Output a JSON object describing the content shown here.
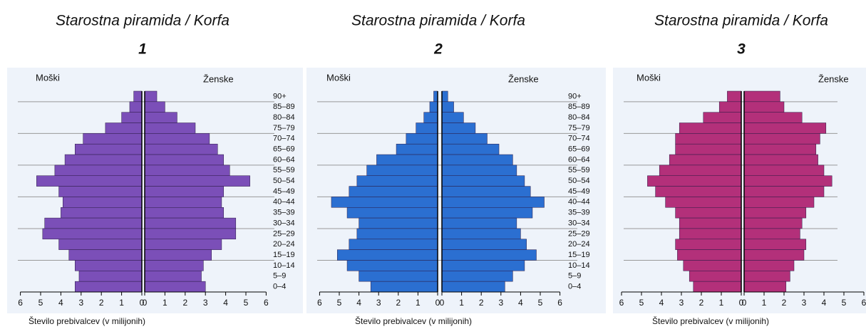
{
  "chart_data": [
    {
      "type": "pyramid",
      "title": "Starostna piramida / Korfa",
      "subtitle": "1",
      "categories": [
        "90+",
        "85–89",
        "80–84",
        "75–79",
        "70–74",
        "65–69",
        "60–64",
        "55–59",
        "50–54",
        "45–49",
        "40–44",
        "35–39",
        "30–34",
        "25–29",
        "20–24",
        "15–19",
        "10–14",
        "5–9",
        "0–4"
      ],
      "series": [
        {
          "name": "Moški",
          "color": "#7b4fb8",
          "values": [
            0.4,
            0.6,
            1.0,
            1.8,
            2.9,
            3.3,
            3.8,
            4.3,
            5.2,
            4.1,
            3.9,
            4.0,
            4.8,
            4.9,
            4.1,
            3.6,
            3.3,
            3.1,
            3.3
          ]
        },
        {
          "name": "Ženske",
          "color": "#7b4fb8",
          "values": [
            0.6,
            1.0,
            1.6,
            2.5,
            3.2,
            3.6,
            3.9,
            4.2,
            5.2,
            3.9,
            3.8,
            3.9,
            4.5,
            4.5,
            3.8,
            3.3,
            2.9,
            2.8,
            3.0
          ]
        }
      ],
      "xlabel": "Število prebivalcev (v milijonih)",
      "xlim": [
        0,
        6
      ],
      "xticks": [
        0,
        1,
        2,
        3,
        4,
        5,
        6
      ]
    },
    {
      "type": "pyramid",
      "title": "Starostna piramida / Korfa",
      "subtitle": "2",
      "categories": [
        "90+",
        "85–89",
        "80–84",
        "75–79",
        "70–74",
        "65–69",
        "60–64",
        "55–59",
        "50–54",
        "45–49",
        "40–44",
        "35–39",
        "30–34",
        "25–29",
        "20–24",
        "15–19",
        "10–14",
        "5–9",
        "0–4"
      ],
      "series": [
        {
          "name": "Moški",
          "color": "#2b6fd1",
          "values": [
            0.2,
            0.4,
            0.7,
            1.1,
            1.6,
            2.1,
            3.1,
            3.6,
            4.1,
            4.5,
            5.4,
            4.6,
            4.0,
            4.1,
            4.5,
            5.1,
            4.6,
            4.0,
            3.4
          ]
        },
        {
          "name": "Ženske",
          "color": "#2b6fd1",
          "values": [
            0.3,
            0.6,
            1.1,
            1.7,
            2.3,
            2.9,
            3.6,
            3.8,
            4.2,
            4.5,
            5.2,
            4.6,
            3.8,
            4.0,
            4.3,
            4.8,
            4.2,
            3.6,
            3.2
          ]
        }
      ],
      "xlabel": "Število prebivalcev (v milijonih)",
      "xlim": [
        0,
        6
      ],
      "xticks": [
        0,
        1,
        2,
        3,
        4,
        5,
        6
      ]
    },
    {
      "type": "pyramid",
      "title": "Starostna piramida / Korfa",
      "subtitle": "3",
      "categories": [
        null,
        null,
        null,
        null,
        null,
        null,
        null,
        null,
        null,
        null,
        null,
        null,
        null,
        null,
        null,
        null,
        null,
        null,
        null
      ],
      "series": [
        {
          "name": "Moški",
          "color": "#b3307a",
          "values": [
            0.7,
            1.1,
            1.9,
            3.1,
            3.3,
            3.3,
            3.6,
            4.1,
            4.7,
            4.3,
            3.8,
            3.3,
            3.1,
            3.1,
            3.3,
            3.2,
            2.9,
            2.6,
            2.4
          ]
        },
        {
          "name": "Ženske",
          "color": "#b3307a",
          "values": [
            1.8,
            2.0,
            2.9,
            4.1,
            3.8,
            3.6,
            3.7,
            4.0,
            4.4,
            4.0,
            3.5,
            3.1,
            2.9,
            2.8,
            3.1,
            3.0,
            2.5,
            2.3,
            2.1
          ]
        }
      ],
      "xlabel": "Število prebivalcev (v milijonih)",
      "xlim": [
        0,
        6
      ],
      "xticks": [
        0,
        1,
        2,
        3,
        4,
        5,
        6
      ]
    }
  ]
}
